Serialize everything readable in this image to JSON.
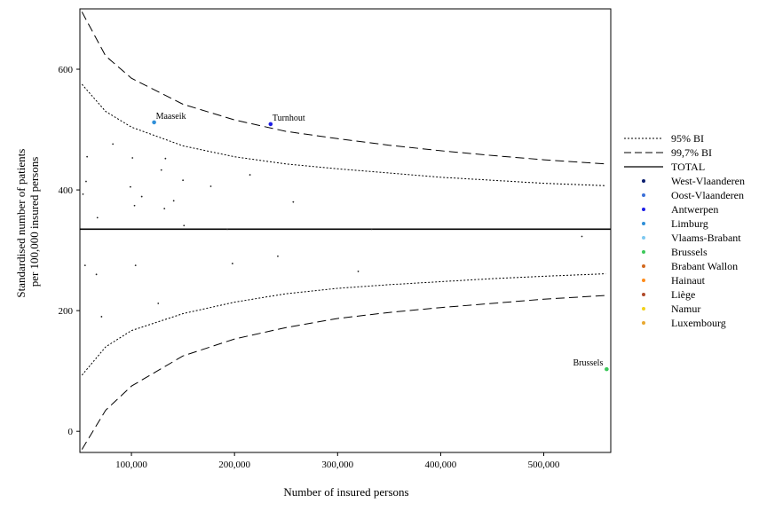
{
  "chart_data": {
    "type": "scatter",
    "title": "",
    "xlabel": "Number of insured persons",
    "ylabel_lines": [
      "Standardised number of patients",
      "per 100,000 insured persons"
    ],
    "xlim": [
      50000,
      565000
    ],
    "ylim": [
      -35,
      700
    ],
    "x_ticks": [
      100000,
      200000,
      300000,
      400000,
      500000
    ],
    "x_tick_labels": [
      "100,000",
      "200,000",
      "300,000",
      "400,000",
      "500,000"
    ],
    "y_ticks": [
      0,
      200,
      400,
      600
    ],
    "y_tick_labels": [
      "0",
      "200",
      "400",
      "600"
    ],
    "total": 335,
    "funnel": {
      "ci95_inner": [
        {
          "x": 52000,
          "y": 575
        },
        {
          "x": 75000,
          "y": 530
        },
        {
          "x": 100000,
          "y": 504
        },
        {
          "x": 150000,
          "y": 473
        },
        {
          "x": 200000,
          "y": 455
        },
        {
          "x": 250000,
          "y": 443
        },
        {
          "x": 300000,
          "y": 435
        },
        {
          "x": 350000,
          "y": 428
        },
        {
          "x": 400000,
          "y": 421
        },
        {
          "x": 450000,
          "y": 416
        },
        {
          "x": 500000,
          "y": 411
        },
        {
          "x": 560000,
          "y": 407
        }
      ],
      "ci95_outer": [
        {
          "x": 52000,
          "y": 93
        },
        {
          "x": 75000,
          "y": 140
        },
        {
          "x": 100000,
          "y": 167
        },
        {
          "x": 150000,
          "y": 195
        },
        {
          "x": 200000,
          "y": 214
        },
        {
          "x": 250000,
          "y": 228
        },
        {
          "x": 300000,
          "y": 237
        },
        {
          "x": 350000,
          "y": 243
        },
        {
          "x": 400000,
          "y": 248
        },
        {
          "x": 450000,
          "y": 253
        },
        {
          "x": 500000,
          "y": 257
        },
        {
          "x": 560000,
          "y": 261
        }
      ],
      "ci997_inner": [
        {
          "x": 52000,
          "y": 695
        },
        {
          "x": 75000,
          "y": 622
        },
        {
          "x": 100000,
          "y": 585
        },
        {
          "x": 150000,
          "y": 542
        },
        {
          "x": 200000,
          "y": 516
        },
        {
          "x": 250000,
          "y": 497
        },
        {
          "x": 300000,
          "y": 485
        },
        {
          "x": 350000,
          "y": 474
        },
        {
          "x": 400000,
          "y": 465
        },
        {
          "x": 450000,
          "y": 457
        },
        {
          "x": 500000,
          "y": 450
        },
        {
          "x": 560000,
          "y": 443
        }
      ],
      "ci997_outer": [
        {
          "x": 52000,
          "y": -30
        },
        {
          "x": 75000,
          "y": 35
        },
        {
          "x": 100000,
          "y": 75
        },
        {
          "x": 150000,
          "y": 125
        },
        {
          "x": 200000,
          "y": 153
        },
        {
          "x": 250000,
          "y": 172
        },
        {
          "x": 300000,
          "y": 187
        },
        {
          "x": 350000,
          "y": 197
        },
        {
          "x": 400000,
          "y": 205
        },
        {
          "x": 450000,
          "y": 212
        },
        {
          "x": 500000,
          "y": 219
        },
        {
          "x": 560000,
          "y": 225
        }
      ]
    },
    "points": [
      {
        "x": 53000,
        "y": 393,
        "color": "#222222"
      },
      {
        "x": 56000,
        "y": 414,
        "color": "#222222"
      },
      {
        "x": 57000,
        "y": 455,
        "color": "#222222"
      },
      {
        "x": 55000,
        "y": 275,
        "color": "#222222"
      },
      {
        "x": 66000,
        "y": 260,
        "color": "#222222"
      },
      {
        "x": 67000,
        "y": 354,
        "color": "#222222"
      },
      {
        "x": 71000,
        "y": 190,
        "color": "#222222"
      },
      {
        "x": 82000,
        "y": 476,
        "color": "#222222"
      },
      {
        "x": 99000,
        "y": 405,
        "color": "#222222"
      },
      {
        "x": 101000,
        "y": 453,
        "color": "#222222"
      },
      {
        "x": 103000,
        "y": 374,
        "color": "#222222"
      },
      {
        "x": 104000,
        "y": 275,
        "color": "#222222"
      },
      {
        "x": 110000,
        "y": 389,
        "color": "#222222"
      },
      {
        "x": 126000,
        "y": 212,
        "color": "#222222"
      },
      {
        "x": 129000,
        "y": 433,
        "color": "#222222"
      },
      {
        "x": 132000,
        "y": 369,
        "color": "#222222"
      },
      {
        "x": 133000,
        "y": 452,
        "color": "#222222"
      },
      {
        "x": 141000,
        "y": 382,
        "color": "#222222"
      },
      {
        "x": 150000,
        "y": 416,
        "color": "#222222"
      },
      {
        "x": 151000,
        "y": 341,
        "color": "#222222"
      },
      {
        "x": 177000,
        "y": 406,
        "color": "#222222"
      },
      {
        "x": 193000,
        "y": 335,
        "color": "#222222"
      },
      {
        "x": 198000,
        "y": 278,
        "color": "#222222"
      },
      {
        "x": 215000,
        "y": 425,
        "color": "#222222"
      },
      {
        "x": 242000,
        "y": 290,
        "color": "#222222"
      },
      {
        "x": 257000,
        "y": 380,
        "color": "#222222"
      },
      {
        "x": 320000,
        "y": 265,
        "color": "#222222"
      },
      {
        "x": 333000,
        "y": 335,
        "color": "#222222"
      },
      {
        "x": 537000,
        "y": 323,
        "color": "#222222"
      },
      {
        "x": 122000,
        "y": 512,
        "color": "#2f8fd8",
        "label": "Maaseik"
      },
      {
        "x": 235000,
        "y": 509,
        "color": "#1e1ee6",
        "label": "Turnhout"
      },
      {
        "x": 561000,
        "y": 103,
        "color": "#3cc85a",
        "label": "Brussels"
      }
    ]
  },
  "legend": {
    "lines": [
      {
        "label": "95% BI",
        "style": "dotted"
      },
      {
        "label": "99,7% BI",
        "style": "dashed"
      },
      {
        "label": "TOTAL",
        "style": "solid"
      }
    ],
    "regions": [
      {
        "label": "West-Vlaanderen",
        "color": "#0b1e6e"
      },
      {
        "label": "Oost-Vlaanderen",
        "color": "#3a6fd8"
      },
      {
        "label": "Antwerpen",
        "color": "#1e1ee6"
      },
      {
        "label": "Limburg",
        "color": "#2f8fd8"
      },
      {
        "label": "Vlaams-Brabant",
        "color": "#7ec8f0"
      },
      {
        "label": "Brussels",
        "color": "#3cc85a"
      },
      {
        "label": "Brabant Wallon",
        "color": "#d2691e"
      },
      {
        "label": "Hainaut",
        "color": "#ff8c1a"
      },
      {
        "label": "Liège",
        "color": "#b04a2a"
      },
      {
        "label": "Namur",
        "color": "#f2d21b"
      },
      {
        "label": "Luxembourg",
        "color": "#e8a830"
      }
    ]
  }
}
